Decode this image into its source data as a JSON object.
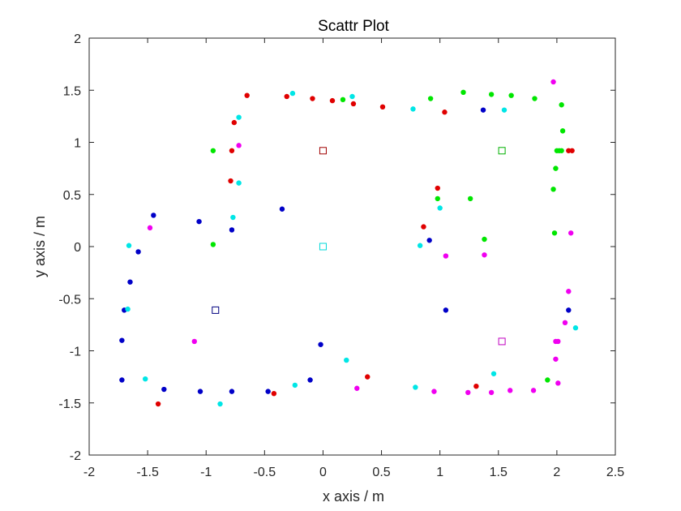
{
  "chart_data": {
    "type": "scatter",
    "title": "Scattr Plot",
    "xlabel": "x axis / m",
    "ylabel": "y axis / m",
    "xlim": [
      -2,
      2.5
    ],
    "ylim": [
      -2,
      2
    ],
    "xticks": [
      -2,
      -1.5,
      -1,
      -0.5,
      0,
      0.5,
      1,
      1.5,
      2,
      2.5
    ],
    "xtick_labels": [
      "-2",
      "-1.5",
      "-1",
      "-0.5",
      "0",
      "0.5",
      "1",
      "1.5",
      "2",
      "2.5"
    ],
    "yticks": [
      -2,
      -1.5,
      -1,
      -0.5,
      0,
      0.5,
      1,
      1.5,
      2
    ],
    "ytick_labels": [
      "-2",
      "-1.5",
      "-1",
      "-0.5",
      "0",
      "0.5",
      "1",
      "1.5",
      "2"
    ],
    "grid": false,
    "colors": {
      "red": "#e00000",
      "green": "#00e600",
      "blue": "#0000c8",
      "cyan": "#00e6e6",
      "magenta": "#f000f0",
      "red_square": "#a00000",
      "green_square": "#00b000",
      "blue_square": "#000080",
      "cyan_square": "#00d8d8",
      "magenta_square": "#c000c0"
    },
    "series": [
      {
        "color": "red",
        "marker": "dot",
        "x": [
          -0.65,
          -0.31,
          -0.09,
          0.08,
          0.26,
          0.51,
          1.04,
          -0.76,
          -0.78,
          -0.79,
          0.98,
          0.86,
          2.1,
          2.13,
          0.38,
          1.31,
          -0.42,
          -1.41
        ],
        "y": [
          1.45,
          1.44,
          1.42,
          1.4,
          1.37,
          1.34,
          1.29,
          1.19,
          0.92,
          0.63,
          0.56,
          0.19,
          0.92,
          0.92,
          -1.25,
          -1.34,
          -1.41,
          -1.51
        ]
      },
      {
        "color": "green",
        "marker": "dot",
        "x": [
          0.17,
          0.92,
          1.2,
          1.44,
          1.61,
          1.81,
          2.04,
          2.05,
          2.0,
          2.02,
          2.04,
          -0.94,
          1.99,
          0.98,
          1.26,
          1.97,
          1.98,
          1.38,
          -0.94,
          1.92
        ],
        "y": [
          1.41,
          1.42,
          1.48,
          1.46,
          1.45,
          1.42,
          1.36,
          1.11,
          0.92,
          0.92,
          0.92,
          0.92,
          0.75,
          0.46,
          0.46,
          0.55,
          0.13,
          0.07,
          0.02,
          -1.28
        ]
      },
      {
        "color": "blue",
        "marker": "dot",
        "x": [
          1.37,
          -1.45,
          -1.06,
          -0.35,
          -0.78,
          0.91,
          -1.58,
          -1.65,
          -1.7,
          1.05,
          2.1,
          -1.72,
          -0.02,
          -1.72,
          -0.11,
          -1.36,
          -1.05,
          -0.78,
          -0.47
        ],
        "y": [
          1.31,
          0.3,
          0.24,
          0.36,
          0.16,
          0.06,
          -0.05,
          -0.34,
          -0.61,
          -0.61,
          -0.61,
          -0.9,
          -0.94,
          -1.28,
          -1.28,
          -1.37,
          -1.39,
          -1.39,
          -1.39
        ]
      },
      {
        "color": "cyan",
        "marker": "dot",
        "x": [
          -0.26,
          0.25,
          0.77,
          1.55,
          -0.72,
          -0.72,
          -0.77,
          1.0,
          -1.66,
          0.83,
          -1.67,
          0.2,
          2.16,
          1.46,
          -1.52,
          -0.24,
          0.79,
          -0.88
        ],
        "y": [
          1.47,
          1.44,
          1.32,
          1.31,
          1.24,
          0.61,
          0.28,
          0.37,
          0.01,
          0.01,
          -0.6,
          -1.09,
          -0.78,
          -1.22,
          -1.27,
          -1.33,
          -1.35,
          -1.51
        ]
      },
      {
        "color": "magenta",
        "marker": "dot",
        "x": [
          1.97,
          -0.72,
          -1.48,
          2.12,
          1.05,
          1.38,
          2.1,
          2.07,
          -1.1,
          1.99,
          2.01,
          1.99,
          2.01,
          0.29,
          1.6,
          1.8,
          0.95,
          1.24,
          1.44
        ],
        "y": [
          1.58,
          0.97,
          0.18,
          0.13,
          -0.09,
          -0.08,
          -0.43,
          -0.73,
          -0.91,
          -0.91,
          -0.91,
          -1.08,
          -1.31,
          -1.36,
          -1.38,
          -1.38,
          -1.39,
          -1.4,
          -1.4
        ]
      },
      {
        "color": "red_square",
        "marker": "square",
        "x": [
          0.0
        ],
        "y": [
          0.92
        ]
      },
      {
        "color": "green_square",
        "marker": "square",
        "x": [
          1.53
        ],
        "y": [
          0.92
        ]
      },
      {
        "color": "cyan_square",
        "marker": "square",
        "x": [
          0.0
        ],
        "y": [
          0.0
        ]
      },
      {
        "color": "blue_square",
        "marker": "square",
        "x": [
          -0.92
        ],
        "y": [
          -0.61
        ]
      },
      {
        "color": "magenta_square",
        "marker": "square",
        "x": [
          1.53
        ],
        "y": [
          -0.91
        ]
      }
    ]
  }
}
